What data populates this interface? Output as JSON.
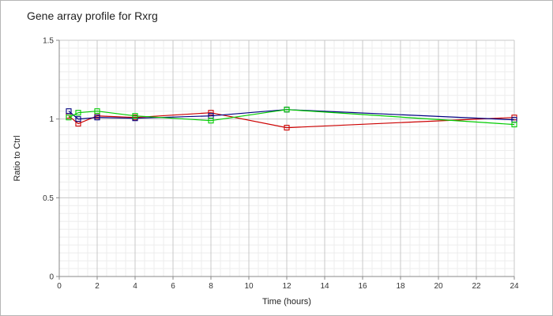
{
  "chart_data": {
    "type": "line",
    "title": "Gene array profile for Rxrg",
    "xlabel": "Time (hours)",
    "ylabel": "Ratio to Ctrl",
    "xlim": [
      0,
      24
    ],
    "ylim": [
      0,
      1.5
    ],
    "x_ticks": [
      "0",
      "2",
      "4",
      "6",
      "8",
      "10",
      "12",
      "14",
      "16",
      "18",
      "20",
      "22",
      "24"
    ],
    "y_ticks": [
      "0",
      "0.5",
      "1",
      "1.5"
    ],
    "grid": true,
    "marker": "square",
    "series": [
      {
        "color": "#cc0000",
        "points": [
          [
            0.5,
            1.02
          ],
          [
            1,
            0.97
          ],
          [
            2,
            1.02
          ],
          [
            4,
            1.01
          ],
          [
            8,
            1.04
          ],
          [
            12,
            0.945
          ],
          [
            24,
            1.01
          ]
        ]
      },
      {
        "color": "#000080",
        "points": [
          [
            0.5,
            1.05
          ],
          [
            1,
            1.0
          ],
          [
            2,
            1.01
          ],
          [
            4,
            1.005
          ],
          [
            8,
            1.02
          ],
          [
            12,
            1.06
          ],
          [
            24,
            0.995
          ]
        ]
      },
      {
        "color": "#00cc00",
        "points": [
          [
            0.5,
            1.01
          ],
          [
            1,
            1.04
          ],
          [
            2,
            1.05
          ],
          [
            4,
            1.02
          ],
          [
            8,
            0.99
          ],
          [
            12,
            1.06
          ],
          [
            24,
            0.965
          ]
        ]
      }
    ]
  }
}
